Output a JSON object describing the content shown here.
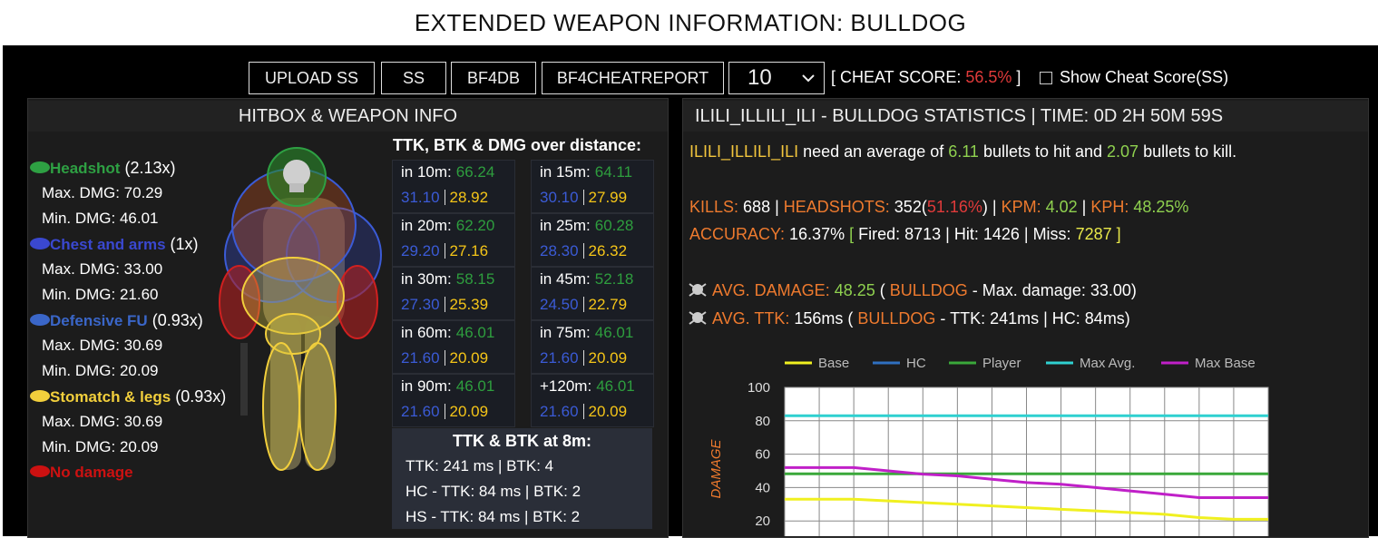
{
  "header": {
    "title": "EXTENDED WEAPON INFORMATION: BULLDOG"
  },
  "toolbar": {
    "buttons": [
      "UPLOAD SS",
      "SS",
      "BF4DB",
      "BF4CHEATREPORT"
    ],
    "select": "10",
    "cheat_score": [
      {
        "text": "[ CHEAT SCORE: ",
        "color": "#ffffff"
      },
      {
        "text": "56.5%",
        "color": "#e03a3a"
      },
      {
        "text": " ]",
        "color": "#ffffff"
      }
    ],
    "checkbox_label": "Show Cheat Score(SS)"
  },
  "hitbox": {
    "title": "HITBOX & WEAPON INFO",
    "zones": [
      {
        "name": "Headshot",
        "multiplier": "(2.13x)",
        "color": "#2ea043",
        "stats": [
          "Max. DMG: 70.29",
          "Min. DMG: 46.01"
        ]
      },
      {
        "name": "Chest and arms",
        "multiplier": "(1x)",
        "color": "#3a48d0",
        "stats": [
          "Max. DMG: 33.00",
          "Min. DMG: 21.60"
        ]
      },
      {
        "name": "Defensive FU",
        "multiplier": "(0.93x)",
        "color": "#3a66c8",
        "stats": [
          "Max. DMG: 30.69",
          "Min. DMG: 20.09"
        ]
      },
      {
        "name": "Stomatch & legs",
        "multiplier": "(0.93x)",
        "color": "#f2cf3c",
        "stats": [
          "Max. DMG: 30.69",
          "Min. DMG: 20.09"
        ]
      }
    ],
    "no_damage": {
      "name": "No damage",
      "color": "#cc1111"
    }
  },
  "distance": {
    "title": "TTK, BTK & DMG over distance:",
    "cells": [
      {
        "label": "in 10m:",
        "damage": "66.24",
        "max": "31.10",
        "min": "28.92"
      },
      {
        "label": "in 15m:",
        "damage": "64.11",
        "max": "30.10",
        "min": "27.99"
      },
      {
        "label": "in 20m:",
        "damage": "62.20",
        "max": "29.20",
        "min": "27.16"
      },
      {
        "label": "in 25m:",
        "damage": "60.28",
        "max": "28.30",
        "min": "26.32"
      },
      {
        "label": "in 30m:",
        "damage": "58.15",
        "max": "27.30",
        "min": "25.39"
      },
      {
        "label": "in 45m:",
        "damage": "52.18",
        "max": "24.50",
        "min": "22.79"
      },
      {
        "label": "in 60m:",
        "damage": "46.01",
        "max": "21.60",
        "min": "20.09"
      },
      {
        "label": "in 75m:",
        "damage": "46.01",
        "max": "21.60",
        "min": "20.09"
      },
      {
        "label": "in 90m:",
        "damage": "46.01",
        "max": "21.60",
        "min": "20.09"
      },
      {
        "label": "+120m:",
        "damage": "46.01",
        "max": "21.60",
        "min": "20.09"
      }
    ]
  },
  "at8m": {
    "title": "TTK & BTK at 8m:",
    "lines": [
      "TTK: 241 ms | BTK: 4",
      "HC - TTK: 84 ms | BTK: 2",
      "HS - TTK: 84 ms | BTK: 2"
    ]
  },
  "stats": {
    "title": "ILILI_ILLILI_ILI - BULLDOG STATISTICS | TIME: 0D 2H 50M 59S",
    "summary": [
      {
        "text": "ILILI_ILLILI_ILI",
        "color": "#f2c53d"
      },
      {
        "text": " need an average of ",
        "color": "#ffffff"
      },
      {
        "text": "6.11",
        "color": "#8fd14f"
      },
      {
        "text": " bullets to hit and ",
        "color": "#ffffff"
      },
      {
        "text": "2.07",
        "color": "#8fd14f"
      },
      {
        "text": " bullets to kill.",
        "color": "#ffffff"
      }
    ],
    "counts": [
      [
        {
          "text": "KILLS:",
          "color": "#ee7a2e"
        },
        {
          "text": " 688 | ",
          "color": "#ffffff"
        },
        {
          "text": "HEADSHOTS:",
          "color": "#ee7a2e"
        },
        {
          "text": " 352(",
          "color": "#ffffff"
        },
        {
          "text": "51.16%",
          "color": "#e03a3a"
        },
        {
          "text": ") | ",
          "color": "#ffffff"
        },
        {
          "text": "KPM:",
          "color": "#ee7a2e"
        },
        {
          "text": " 4.02",
          "color": "#8fd14f"
        },
        {
          "text": " | ",
          "color": "#ffffff"
        },
        {
          "text": "KPH:",
          "color": "#ee7a2e"
        },
        {
          "text": " 48.25%",
          "color": "#8fd14f"
        }
      ],
      [
        {
          "text": "ACCURACY:",
          "color": "#ee7a2e"
        },
        {
          "text": " 16.37% ",
          "color": "#ffffff"
        },
        {
          "text": "[",
          "color": "#8fd14f"
        },
        {
          "text": " Fired: 8713 | Hit: 1426 | Miss: ",
          "color": "#ffffff"
        },
        {
          "text": "7287 ]",
          "color": "#e8e84a"
        }
      ]
    ],
    "averages": [
      [
        {
          "text": "AVG. DAMAGE:",
          "color": "#ee7a2e"
        },
        {
          "text": " 48.25",
          "color": "#8fd14f"
        },
        {
          "text": " ( ",
          "color": "#ffffff"
        },
        {
          "text": "BULLDOG",
          "color": "#ee7a2e"
        },
        {
          "text": " - Max. damage: 33.00)",
          "color": "#ffffff"
        }
      ],
      [
        {
          "text": "AVG. TTK:",
          "color": "#ee7a2e"
        },
        {
          "text": " 156ms ( ",
          "color": "#ffffff"
        },
        {
          "text": "BULLDOG",
          "color": "#ee7a2e"
        },
        {
          "text": " - TTK: 241ms | HC: 84ms)",
          "color": "#ffffff"
        }
      ]
    ]
  },
  "chart": {
    "type": "line",
    "ylabel": "DAMAGE",
    "categories": [
      null,
      null,
      null,
      null,
      null,
      null,
      null,
      null,
      null,
      null,
      null,
      null,
      null,
      null,
      null
    ],
    "series": [
      {
        "name": "Base",
        "color": "#f0f020",
        "values": [
          33,
          33,
          33,
          32,
          31,
          30,
          29,
          28,
          27,
          26,
          25,
          24,
          22,
          21,
          21
        ]
      },
      {
        "name": "HC",
        "color": "#2f6fc0",
        "values": [
          null,
          null,
          null,
          null,
          null,
          null,
          null,
          null,
          null,
          null,
          null,
          null,
          null,
          null,
          null
        ]
      },
      {
        "name": "Player",
        "color": "#3aa83a",
        "values": [
          48.25,
          48.25,
          48.25,
          48.25,
          48.25,
          48.25,
          48.25,
          48.25,
          48.25,
          48.25,
          48.25,
          48.25,
          48.25,
          48.25,
          48.25
        ]
      },
      {
        "name": "Max Avg.",
        "color": "#2fd0d0",
        "values": [
          83,
          83,
          83,
          83,
          83,
          83,
          83,
          83,
          83,
          83,
          83,
          83,
          83,
          83,
          83
        ]
      },
      {
        "name": "Max Base",
        "color": "#c020c8",
        "values": [
          52,
          52,
          52,
          50,
          48,
          47,
          45,
          43,
          42,
          40,
          38,
          36,
          34,
          34,
          34
        ]
      }
    ],
    "ylim": [
      0,
      100
    ],
    "yticks": [
      20,
      40,
      60,
      80,
      100
    ],
    "grid": true
  }
}
